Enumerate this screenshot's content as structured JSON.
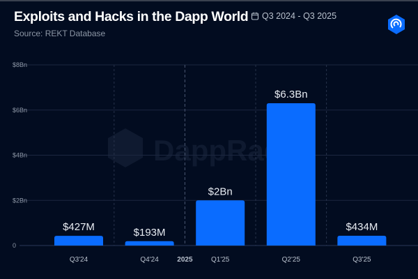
{
  "header": {
    "title": "Exploits and Hacks in the Dapp World",
    "date_range": "Q3 2024 - Q3 2025",
    "source": "Source: REKT Database",
    "calendar_icon": "calendar-icon",
    "logo_icon": "dappradar-logo-icon"
  },
  "watermark": "DappRadar",
  "colors": {
    "background": "#020c20",
    "bar": "#0a6cff",
    "grid": "#1c2740"
  },
  "chart_data": {
    "type": "bar",
    "title": "Exploits and Hacks in the Dapp World",
    "categories": [
      "Q3'24",
      "Q4'24",
      "Q1'25",
      "Q2'25",
      "Q3'25"
    ],
    "values": [
      0.427,
      0.193,
      2.0,
      6.3,
      0.434
    ],
    "data_labels": [
      "$427M",
      "$193M",
      "$2Bn",
      "$6.3Bn",
      "$434M"
    ],
    "yticks": [
      {
        "v": 0,
        "label": "0"
      },
      {
        "v": 2,
        "label": "$2Bn"
      },
      {
        "v": 4,
        "label": "$4Bn"
      },
      {
        "v": 6,
        "label": "$6Bn"
      },
      {
        "v": 8,
        "label": "$8Bn"
      }
    ],
    "ylim": [
      0,
      8
    ],
    "year_marker": "2025",
    "grid": true
  }
}
